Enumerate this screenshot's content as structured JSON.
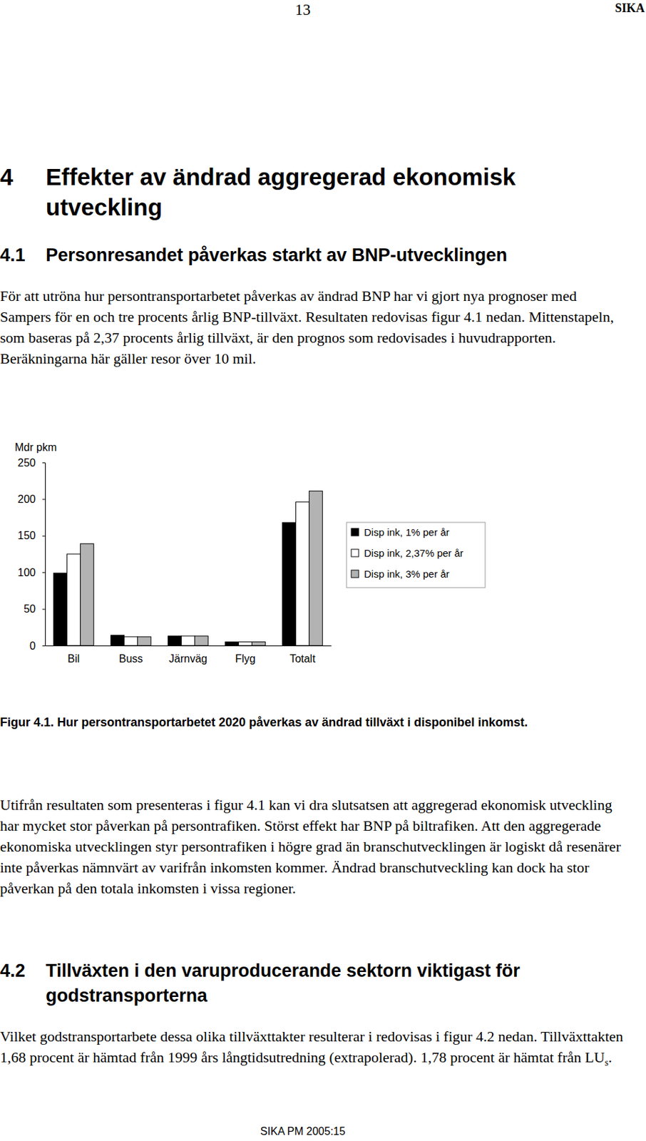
{
  "header": {
    "page_number": "13",
    "publisher": "SIKA"
  },
  "chapter": {
    "number": "4",
    "title": "Effekter av ändrad aggregerad ekonomisk utveckling"
  },
  "section1": {
    "number": "4.1",
    "title": "Personresandet påverkas starkt av BNP-utvecklingen",
    "intro": "För att utröna hur persontransportarbetet påverkas av ändrad BNP har vi gjort nya prognoser med Sampers för en och tre procents årlig BNP-tillväxt. Resultaten redovisas figur 4.1 nedan. Mittenstapeln, som baseras på 2,37 procents årlig tillväxt, är den prognos som redovisades i huvudrapporten. Beräkningarna här gäller resor över 10 mil.",
    "conclusion": "Utifrån resultaten som presenteras i figur 4.1 kan vi dra slutsatsen att aggregerad ekonomisk utveckling har mycket stor påverkan på persontrafiken. Störst effekt har BNP på biltrafiken. Att den aggregerade ekonomiska utvecklingen styr persontrafiken i högre grad än branschutvecklingen är logiskt då resenärer inte påverkas nämnvärt av varifrån inkomsten kommer. Ändrad branschutveckling kan dock ha stor påverkan på den totala inkomsten i vissa regioner."
  },
  "chart_data": {
    "type": "bar",
    "y_label": "Mdr pkm",
    "categories": [
      "Bil",
      "Buss",
      "Järnväg",
      "Flyg",
      "Totalt"
    ],
    "series": [
      {
        "name": "Disp ink, 1% per år",
        "color": "#000000",
        "values": [
          99,
          14,
          13,
          5,
          168
        ]
      },
      {
        "name": "Disp ink, 2,37% per år",
        "color": "#ffffff",
        "values": [
          125,
          12,
          13,
          5,
          196
        ]
      },
      {
        "name": "Disp ink, 3% per år",
        "color": "#b3b3b3",
        "values": [
          139,
          12,
          13,
          5,
          211
        ]
      }
    ],
    "ylim": [
      0,
      250
    ],
    "yticks": [
      0,
      50,
      100,
      150,
      200,
      250
    ],
    "grid": false,
    "legend": "right"
  },
  "figure": {
    "caption": "Figur 4.1. Hur persontransportarbetet 2020 påverkas av ändrad tillväxt i disponibel inkomst."
  },
  "section2": {
    "number": "4.2",
    "title": "Tillväxten i den varuproducerande sektorn viktigast för godstransporterna",
    "text": "Vilket godstransportarbete dessa olika tillväxttakter resulterar i redovisas i figur 4.2 nedan. Tillväxttakten 1,68 procent är hämtad från 1999 års långtidsutredning (extrapolerad). 1,78 procent är hämtat från LU",
    "subscript": "s",
    "text_end": "."
  },
  "footer": {
    "label": "SIKA PM 2005:15"
  }
}
